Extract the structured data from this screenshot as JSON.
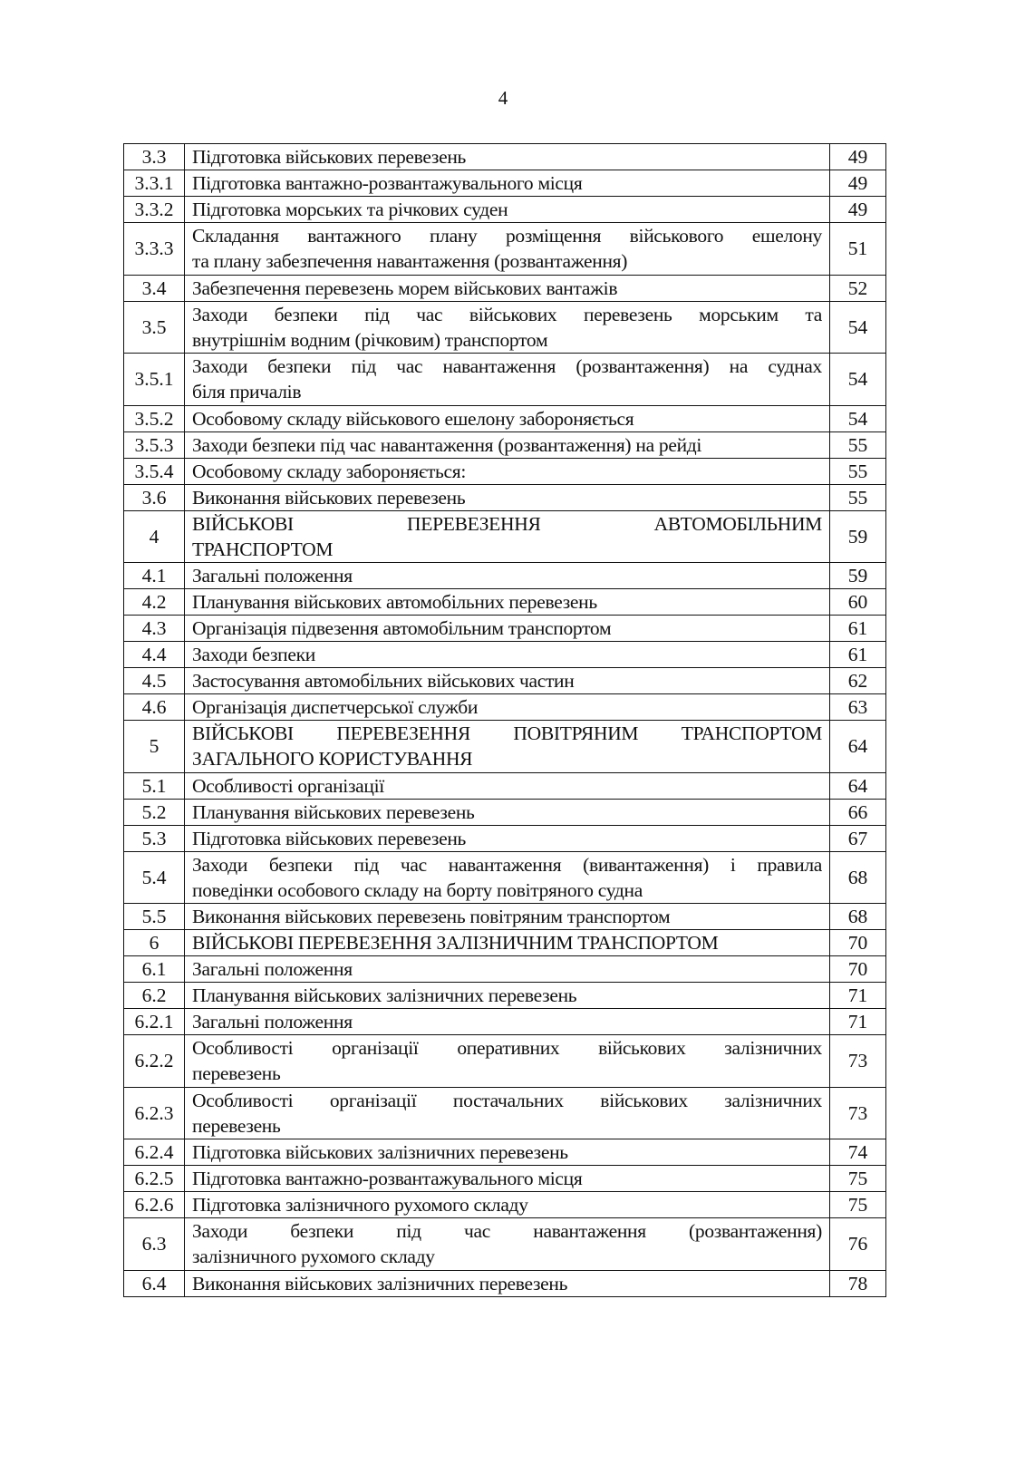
{
  "page_number": "4",
  "rows": [
    {
      "num": "3.3",
      "lines": [
        "Підготовка військових перевезень"
      ],
      "page": "49"
    },
    {
      "num": "3.3.1",
      "lines": [
        "Підготовка вантажно-розвантажувального місця"
      ],
      "page": "49"
    },
    {
      "num": "3.3.2",
      "lines": [
        "Підготовка морських та річкових суден"
      ],
      "page": "49"
    },
    {
      "num": "3.3.3",
      "lines": [
        "Складання вантажного плану розміщення військового ешелону",
        "та плану забезпечення навантаження (розвантаження)"
      ],
      "page": "51"
    },
    {
      "num": "3.4",
      "lines": [
        "Забезпечення перевезень морем військових вантажів"
      ],
      "page": "52"
    },
    {
      "num": "3.5",
      "lines": [
        "Заходи безпеки під час військових перевезень морським та",
        "внутрішнім водним (річковим) транспортом"
      ],
      "page": "54"
    },
    {
      "num": "3.5.1",
      "lines": [
        "Заходи безпеки під час навантаження (розвантаження) на суднах",
        "біля причалів"
      ],
      "page": "54"
    },
    {
      "num": "3.5.2",
      "lines": [
        "Особовому складу військового ешелону забороняється"
      ],
      "page": "54"
    },
    {
      "num": "3.5.3",
      "lines": [
        "Заходи безпеки під час навантаження (розвантаження) на рейді"
      ],
      "page": "55"
    },
    {
      "num": "3.5.4",
      "lines": [
        "Особовому складу забороняється:"
      ],
      "page": "55"
    },
    {
      "num": "3.6",
      "lines": [
        "Виконання військових перевезень"
      ],
      "page": "55"
    },
    {
      "num": "4",
      "lines": [
        "ВІЙСЬКОВІ ПЕРЕВЕЗЕННЯ АВТОМОБІЛЬНИМ",
        "ТРАНСПОРТОМ"
      ],
      "page": "59"
    },
    {
      "num": "4.1",
      "lines": [
        "Загальні положення"
      ],
      "page": "59"
    },
    {
      "num": "4.2",
      "lines": [
        "Планування військових автомобільних перевезень"
      ],
      "page": "60"
    },
    {
      "num": "4.3",
      "lines": [
        "Організація підвезення автомобільним транспортом"
      ],
      "page": "61"
    },
    {
      "num": "4.4",
      "lines": [
        "Заходи безпеки"
      ],
      "page": "61"
    },
    {
      "num": "4.5",
      "lines": [
        "Застосування автомобільних військових частин"
      ],
      "page": "62"
    },
    {
      "num": "4.6",
      "lines": [
        "Організація диспетчерської служби"
      ],
      "page": "63"
    },
    {
      "num": "5",
      "lines": [
        "ВІЙСЬКОВІ ПЕРЕВЕЗЕННЯ ПОВІТРЯНИМ ТРАНСПОРТОМ",
        "ЗАГАЛЬНОГО КОРИСТУВАННЯ"
      ],
      "page": "64"
    },
    {
      "num": "5.1",
      "lines": [
        "Особливості організації"
      ],
      "page": "64"
    },
    {
      "num": "5.2",
      "lines": [
        "Планування військових перевезень"
      ],
      "page": "66"
    },
    {
      "num": "5.3",
      "lines": [
        "Підготовка військових перевезень"
      ],
      "page": "67"
    },
    {
      "num": "5.4",
      "lines": [
        "Заходи безпеки під час навантаження (вивантаження) і правила",
        "поведінки особового складу на борту повітряного судна"
      ],
      "page": "68"
    },
    {
      "num": "5.5",
      "lines": [
        "Виконання військових перевезень повітряним транспортом"
      ],
      "page": "68"
    },
    {
      "num": "6",
      "lines": [
        "ВІЙСЬКОВІ ПЕРЕВЕЗЕННЯ ЗАЛІЗНИЧНИМ ТРАНСПОРТОМ"
      ],
      "page": "70"
    },
    {
      "num": "6.1",
      "lines": [
        "Загальні положення"
      ],
      "page": "70"
    },
    {
      "num": "6.2",
      "lines": [
        "Планування військових залізничних перевезень"
      ],
      "page": "71"
    },
    {
      "num": "6.2.1",
      "lines": [
        "Загальні положення"
      ],
      "page": "71"
    },
    {
      "num": "6.2.2",
      "lines": [
        "Особливості організації оперативних військових залізничних",
        "перевезень"
      ],
      "page": "73"
    },
    {
      "num": "6.2.3",
      "lines": [
        "Особливості організації постачальних військових залізничних",
        "перевезень"
      ],
      "page": "73"
    },
    {
      "num": "6.2.4",
      "lines": [
        "Підготовка військових залізничних перевезень"
      ],
      "page": "74"
    },
    {
      "num": "6.2.5",
      "lines": [
        "Підготовка вантажно-розвантажувального місця"
      ],
      "page": "75"
    },
    {
      "num": "6.2.6",
      "lines": [
        "Підготовка залізничного рухомого складу"
      ],
      "page": "75"
    },
    {
      "num": "6.3",
      "lines": [
        "Заходи безпеки під час навантаження (розвантаження)",
        "залізничного рухомого складу"
      ],
      "page": "76"
    },
    {
      "num": "6.4",
      "lines": [
        "Виконання військових залізничних перевезень"
      ],
      "page": "78"
    }
  ]
}
